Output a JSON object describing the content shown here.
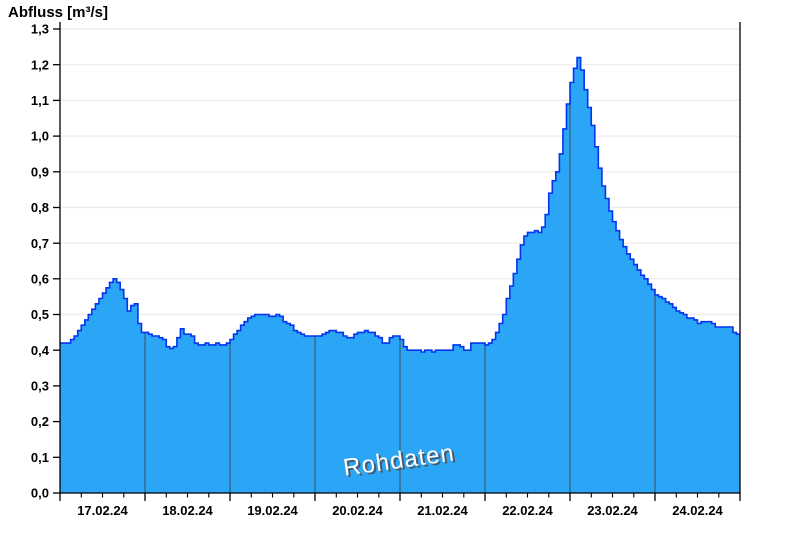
{
  "header": {
    "title": "Abfluss [m³/s]"
  },
  "chart_data": {
    "type": "area",
    "title": "Abfluss [m³/s]",
    "xlabel": "",
    "ylabel": "Abfluss [m³/s]",
    "watermark": "Rohdaten",
    "ylim": [
      0,
      1.3
    ],
    "grid": "horizontal-light, dark day-boundary lines inside fill",
    "legend": "none",
    "y_tick_labels": [
      "0,0",
      "0,1",
      "0,2",
      "0,3",
      "0,4",
      "0,5",
      "0,6",
      "0,7",
      "0,8",
      "0,9",
      "1,0",
      "1,1",
      "1,2",
      "1,3"
    ],
    "categories": [
      "17.02.24",
      "18.02.24",
      "19.02.24",
      "20.02.24",
      "21.02.24",
      "22.02.24",
      "23.02.24",
      "24.02.24"
    ],
    "minor_ticks_per_day": 4,
    "sampling": "hourly",
    "series": [
      {
        "name": "Rohdaten"
      }
    ],
    "values_by_day": [
      [
        0.42,
        0.42,
        0.42,
        0.43,
        0.44,
        0.455,
        0.47,
        0.485,
        0.5,
        0.515,
        0.53,
        0.545,
        0.56,
        0.575,
        0.59,
        0.6,
        0.59,
        0.57,
        0.545,
        0.51,
        0.525,
        0.53,
        0.475,
        0.45
      ],
      [
        0.45,
        0.445,
        0.44,
        0.44,
        0.435,
        0.43,
        0.41,
        0.405,
        0.41,
        0.435,
        0.46,
        0.445,
        0.445,
        0.44,
        0.42,
        0.415,
        0.415,
        0.42,
        0.415,
        0.415,
        0.42,
        0.415,
        0.415,
        0.42
      ],
      [
        0.43,
        0.445,
        0.455,
        0.47,
        0.48,
        0.49,
        0.495,
        0.5,
        0.5,
        0.5,
        0.5,
        0.495,
        0.495,
        0.5,
        0.495,
        0.48,
        0.475,
        0.47,
        0.455,
        0.45,
        0.445,
        0.44,
        0.44,
        0.44
      ],
      [
        0.44,
        0.44,
        0.445,
        0.45,
        0.455,
        0.455,
        0.45,
        0.45,
        0.44,
        0.435,
        0.435,
        0.445,
        0.45,
        0.45,
        0.455,
        0.45,
        0.45,
        0.44,
        0.435,
        0.42,
        0.42,
        0.435,
        0.44,
        0.44
      ],
      [
        0.43,
        0.41,
        0.4,
        0.4,
        0.4,
        0.4,
        0.395,
        0.4,
        0.4,
        0.395,
        0.4,
        0.4,
        0.4,
        0.4,
        0.4,
        0.415,
        0.415,
        0.41,
        0.4,
        0.4,
        0.42,
        0.42,
        0.42,
        0.42
      ],
      [
        0.415,
        0.42,
        0.43,
        0.45,
        0.475,
        0.5,
        0.545,
        0.58,
        0.615,
        0.655,
        0.695,
        0.72,
        0.73,
        0.73,
        0.735,
        0.73,
        0.745,
        0.78,
        0.84,
        0.875,
        0.9,
        0.95,
        1.02,
        1.09
      ],
      [
        1.15,
        1.19,
        1.22,
        1.185,
        1.13,
        1.08,
        1.03,
        0.97,
        0.91,
        0.86,
        0.825,
        0.79,
        0.76,
        0.735,
        0.71,
        0.69,
        0.67,
        0.655,
        0.64,
        0.625,
        0.61,
        0.6,
        0.585,
        0.57
      ],
      [
        0.555,
        0.55,
        0.545,
        0.535,
        0.53,
        0.52,
        0.51,
        0.505,
        0.5,
        0.49,
        0.49,
        0.485,
        0.475,
        0.48,
        0.48,
        0.48,
        0.475,
        0.465,
        0.465,
        0.465,
        0.465,
        0.465,
        0.45,
        0.445
      ]
    ],
    "colors": {
      "fill": "#2ba6f7",
      "line": "#0334f0",
      "day_line": "#3a5a78",
      "grid": "#ebebeb",
      "axis": "#000000",
      "watermark_text": "#ffffff",
      "watermark_shadow": "#4b5865"
    }
  }
}
